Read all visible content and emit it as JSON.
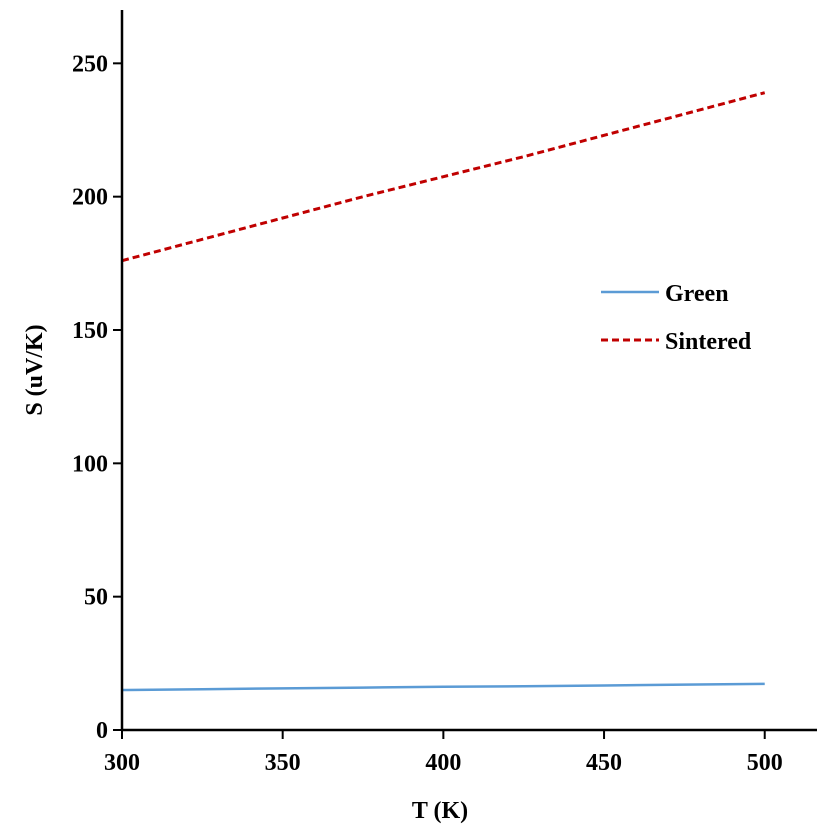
{
  "chart_data": {
    "type": "line",
    "title": "",
    "xlabel": "T (K)",
    "ylabel": "S (uV/K)",
    "xlim": [
      300,
      520
    ],
    "ylim": [
      0,
      270
    ],
    "xticks": [
      300,
      350,
      400,
      450,
      500
    ],
    "yticks": [
      0,
      50,
      100,
      150,
      200,
      250
    ],
    "xtick_labels": [
      "300",
      "350",
      "400",
      "450",
      "500"
    ],
    "ytick_labels": [
      "0",
      "50",
      "100",
      "150",
      "200",
      "250"
    ],
    "grid": false,
    "legend_position": "right",
    "series": [
      {
        "name": "Green",
        "color": "#5b9bd5",
        "style": "solid",
        "x": [
          300,
          325,
          350,
          375,
          400,
          425,
          450,
          475,
          500
        ],
        "y": [
          15.0,
          15.3,
          15.6,
          15.9,
          16.2,
          16.4,
          16.7,
          17.0,
          17.3
        ]
      },
      {
        "name": "Sintered",
        "color": "#c00000",
        "style": "dashed",
        "x": [
          300,
          325,
          350,
          375,
          400,
          425,
          450,
          475,
          500
        ],
        "y": [
          176,
          184,
          192,
          200,
          207.5,
          215,
          223,
          231,
          239
        ]
      }
    ]
  }
}
